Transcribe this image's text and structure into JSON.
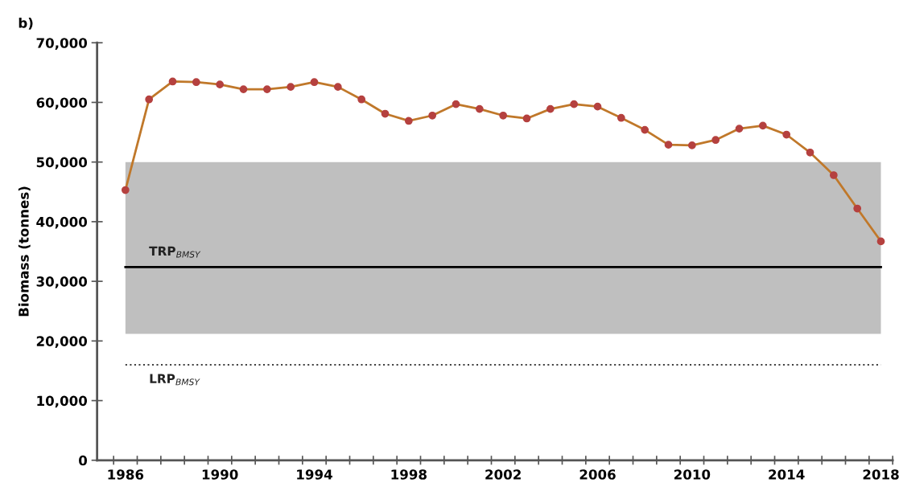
{
  "chart_data": {
    "type": "line",
    "title": "b)",
    "ylabel": "Biomass (tonnes)",
    "categories": [
      "1986",
      null,
      null,
      null,
      "1990",
      null,
      null,
      null,
      "1994",
      null,
      null,
      null,
      "1998",
      null,
      null,
      null,
      "2002",
      null,
      null,
      null,
      "2006",
      null,
      null,
      null,
      "2010",
      null,
      null,
      null,
      "2014",
      null,
      null,
      null,
      "2018"
    ],
    "series": [
      {
        "color": "#c0782a",
        "values": [
          45300,
          60500,
          63500,
          63400,
          63000,
          62200,
          62200,
          62600,
          63400,
          62600,
          60500,
          58100,
          56900,
          57800,
          59700,
          58900,
          57800,
          57300,
          58900,
          59700,
          59300,
          57400,
          55400,
          52900,
          52800,
          53700,
          55600,
          56100,
          54600,
          51600,
          47800,
          42200,
          36700
        ]
      }
    ],
    "marker": "circle",
    "line_style": "solid",
    "ylim": [
      0,
      70000
    ],
    "yticks": [
      0,
      {
        "value": 10000,
        "label": "10,000"
      },
      {
        "value": 20000,
        "label": "20,000"
      },
      {
        "value": 30000,
        "label": "30,000"
      },
      {
        "value": 40000,
        "label": "40,000"
      },
      {
        "value": 50000,
        "label": "50,000"
      },
      {
        "value": 60000,
        "label": "60,000"
      },
      {
        "value": 70000,
        "label": "70,000"
      }
    ],
    "bands": [
      {
        "axis": "y",
        "from": 21200,
        "to": 50000,
        "color": "#bfbfbf"
      }
    ],
    "ref_lines": [
      {
        "axis": "y",
        "value": 32400,
        "label": "TRP$_{BMSY}$",
        "color": "#000000",
        "line_style": "solid"
      },
      {
        "axis": "y",
        "value": 16000,
        "label": "LRP$_{BMSY}$",
        "color": "#404040",
        "line_style": "dotted"
      }
    ],
    "grid": false,
    "legend": false
  }
}
